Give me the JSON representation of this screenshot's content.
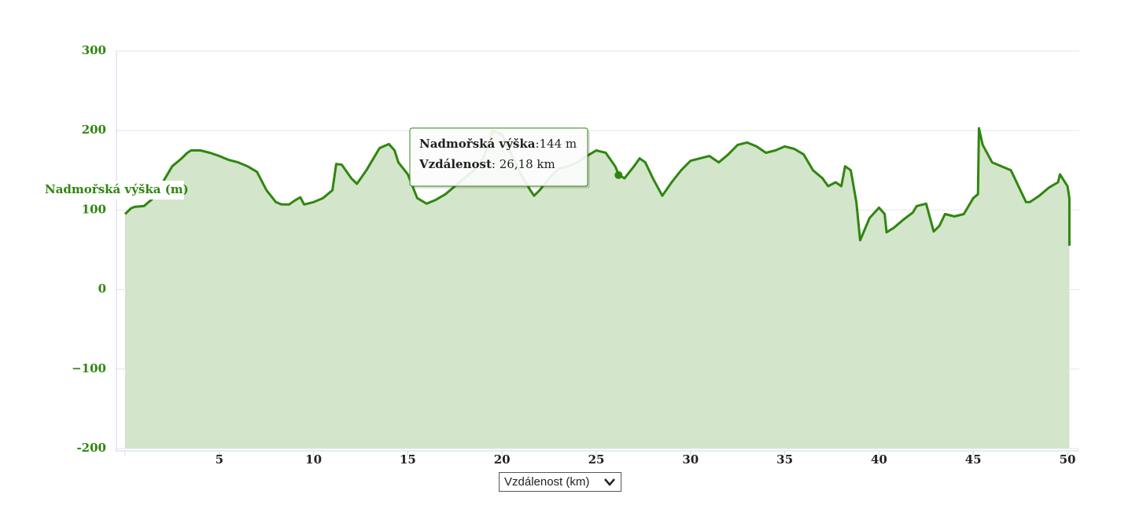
{
  "chart_data": {
    "type": "area",
    "y_label": "Nadmořská výška (m)",
    "x_selector": "Vzdálenost (km)",
    "color": "#2f860f",
    "fill": "#d3e5ca",
    "grid": true,
    "xlim": [
      0,
      50.1
    ],
    "ylim": [
      -200,
      300
    ],
    "xticks": [
      5,
      10,
      15,
      20,
      25,
      30,
      35,
      40,
      45,
      50
    ],
    "yticks": [
      -200,
      {
        "value": -100,
        "label": "−100"
      },
      0,
      100,
      200,
      300
    ],
    "x": [
      0,
      0.3,
      0.5,
      1,
      1.5,
      2,
      2.5,
      3,
      3.3,
      3.5,
      4,
      4.5,
      5,
      5.5,
      6,
      6.5,
      7,
      7.5,
      8,
      8.3,
      8.7,
      9,
      9.3,
      9.5,
      10,
      10.5,
      11,
      11.2,
      11.5,
      12,
      12.3,
      12.8,
      13.5,
      14,
      14.3,
      14.5,
      15,
      15.5,
      16,
      16.5,
      17,
      17.5,
      18,
      18.5,
      19,
      19.5,
      20,
      20.5,
      21,
      21.5,
      21.7,
      22,
      22.5,
      23,
      23.5,
      24,
      24.5,
      25,
      25.5,
      26,
      26.2,
      26.5,
      27,
      27.3,
      27.6,
      28,
      28.5,
      29,
      29.5,
      30,
      30.5,
      31,
      31.5,
      32,
      32.5,
      33,
      33.5,
      34,
      34.5,
      35,
      35.5,
      36,
      36.5,
      37,
      37.3,
      37.7,
      38,
      38.2,
      38.5,
      38.8,
      39,
      39.5,
      40,
      40.3,
      40.4,
      40.8,
      41.3,
      41.8,
      42,
      42.5,
      42.9,
      43.2,
      43.5,
      44,
      44.5,
      45,
      45.25,
      45.3,
      45.5,
      46,
      46.5,
      47,
      47.5,
      47.8,
      48,
      48.5,
      49,
      49.5,
      49.6,
      50,
      50.1,
      50.1
    ],
    "values": [
      95,
      102,
      104,
      105,
      115,
      135,
      155,
      165,
      172,
      175,
      175,
      172,
      168,
      163,
      160,
      155,
      148,
      125,
      110,
      107,
      107,
      112,
      116,
      107,
      110,
      115,
      125,
      158,
      157,
      140,
      133,
      150,
      178,
      183,
      175,
      160,
      145,
      115,
      108,
      113,
      120,
      130,
      140,
      150,
      165,
      200,
      195,
      170,
      145,
      125,
      118,
      125,
      140,
      152,
      155,
      160,
      168,
      175,
      172,
      155,
      144,
      140,
      155,
      165,
      160,
      140,
      118,
      135,
      150,
      162,
      165,
      168,
      160,
      170,
      182,
      185,
      180,
      172,
      175,
      180,
      177,
      170,
      150,
      140,
      130,
      135,
      130,
      155,
      150,
      110,
      62,
      90,
      103,
      95,
      72,
      78,
      88,
      97,
      105,
      108,
      73,
      80,
      95,
      92,
      95,
      115,
      120,
      203,
      182,
      160,
      155,
      150,
      125,
      110,
      110,
      118,
      128,
      135,
      145,
      130,
      115,
      55
    ],
    "tooltip": {
      "x": 26.18,
      "y": 144,
      "rows": [
        {
          "name": "Nadmořská výška",
          "text": ":144 m"
        },
        {
          "name": "Vzdálenost",
          "text": ": 26,18 km"
        }
      ]
    }
  }
}
